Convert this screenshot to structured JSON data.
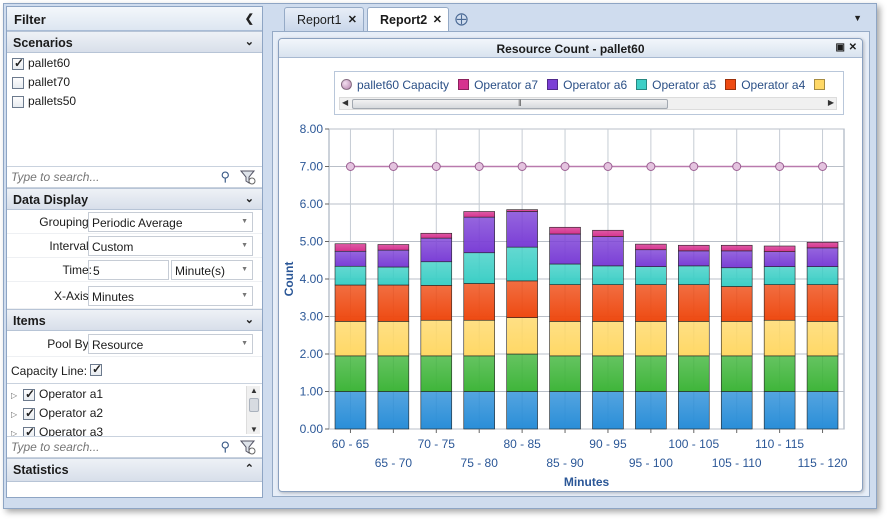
{
  "filter": {
    "title": "Filter",
    "scenarios": {
      "header": "Scenarios",
      "items": [
        {
          "label": "pallet60",
          "checked": true
        },
        {
          "label": "pallet70",
          "checked": false
        },
        {
          "label": "pallets50",
          "checked": false
        }
      ],
      "search_placeholder": "Type to search..."
    },
    "data_display": {
      "header": "Data Display",
      "grouping_label": "Grouping:",
      "grouping_value": "Periodic Average",
      "interval_label": "Interval:",
      "interval_value": "Custom",
      "time_label": "Time:",
      "time_value": "5",
      "time_unit": "Minute(s)",
      "xaxis_label": "X-Axis:",
      "xaxis_value": "Minutes"
    },
    "items": {
      "header": "Items",
      "pool_by_label": "Pool By:",
      "pool_by_value": "Resource",
      "capacity_line_label": "Capacity Line:",
      "capacity_line_checked": true,
      "list": [
        {
          "label": "Operator a1",
          "checked": true
        },
        {
          "label": "Operator a2",
          "checked": true
        },
        {
          "label": "Operator a3",
          "checked": true
        }
      ],
      "search_placeholder": "Type to search..."
    },
    "statistics": {
      "header": "Statistics"
    }
  },
  "tabs": [
    {
      "label": "Report1",
      "active": false
    },
    {
      "label": "Report2",
      "active": true
    }
  ],
  "report": {
    "title": "Resource Count - pallet60",
    "legend": [
      {
        "label": "pallet60 Capacity",
        "color": "#c993c2",
        "shape": "circle"
      },
      {
        "label": "Operator a7",
        "color": "#d6338f"
      },
      {
        "label": "Operator a6",
        "color": "#7b3fd6"
      },
      {
        "label": "Operator a5",
        "color": "#3dcfc6"
      },
      {
        "label": "Operator a4",
        "color": "#ee4a12"
      },
      {
        "label": "",
        "color": "#ffd866"
      }
    ]
  },
  "chart_data": {
    "type": "bar",
    "stacked": true,
    "xlabel": "Minutes",
    "ylabel": "Count",
    "ylim": [
      0,
      8
    ],
    "yticks": [
      "0.00",
      "1.00",
      "2.00",
      "3.00",
      "4.00",
      "5.00",
      "6.00",
      "7.00",
      "8.00"
    ],
    "grid": true,
    "legend_position": "top",
    "categories": [
      "60 - 65",
      "65 - 70",
      "70 - 75",
      "75 - 80",
      "80 - 85",
      "85 - 90",
      "90 - 95",
      "95 - 100",
      "100 - 105",
      "105 - 110",
      "110 - 115",
      "115 - 120"
    ],
    "series": [
      {
        "color": "#2a8ed8",
        "values": [
          1,
          1,
          1,
          1,
          1,
          1,
          1,
          1,
          1,
          1,
          1,
          1
        ]
      },
      {
        "color": "#3fb53a",
        "values": [
          0.95,
          0.95,
          0.95,
          0.95,
          1,
          0.95,
          0.95,
          0.95,
          0.95,
          0.95,
          0.95,
          0.95
        ]
      },
      {
        "color": "#ffd866",
        "values": [
          0.92,
          0.92,
          0.95,
          0.95,
          0.97,
          0.92,
          0.92,
          0.92,
          0.92,
          0.92,
          0.95,
          0.92
        ]
      },
      {
        "name": "Operator a4",
        "color": "#ee4a12",
        "values": [
          0.97,
          0.97,
          0.93,
          0.98,
          0.98,
          0.98,
          0.98,
          0.98,
          0.98,
          0.93,
          0.95,
          0.98
        ]
      },
      {
        "name": "Operator a5",
        "color": "#3dcfc6",
        "values": [
          0.5,
          0.48,
          0.63,
          0.82,
          0.9,
          0.55,
          0.5,
          0.48,
          0.5,
          0.5,
          0.48,
          0.48
        ]
      },
      {
        "name": "Operator a6",
        "color": "#7b3fd6",
        "values": [
          0.4,
          0.45,
          0.63,
          0.95,
          0.95,
          0.8,
          0.78,
          0.45,
          0.4,
          0.45,
          0.4,
          0.5
        ]
      },
      {
        "name": "Operator a7",
        "color": "#d6338f",
        "values": [
          0.2,
          0.15,
          0.13,
          0.15,
          0.05,
          0.18,
          0.17,
          0.15,
          0.15,
          0.15,
          0.15,
          0.15
        ]
      },
      {
        "name": "pallet60 Capacity",
        "type": "line",
        "color": "#c993c2",
        "values": [
          7,
          7,
          7,
          7,
          7,
          7,
          7,
          7,
          7,
          7,
          7,
          7
        ]
      }
    ]
  }
}
